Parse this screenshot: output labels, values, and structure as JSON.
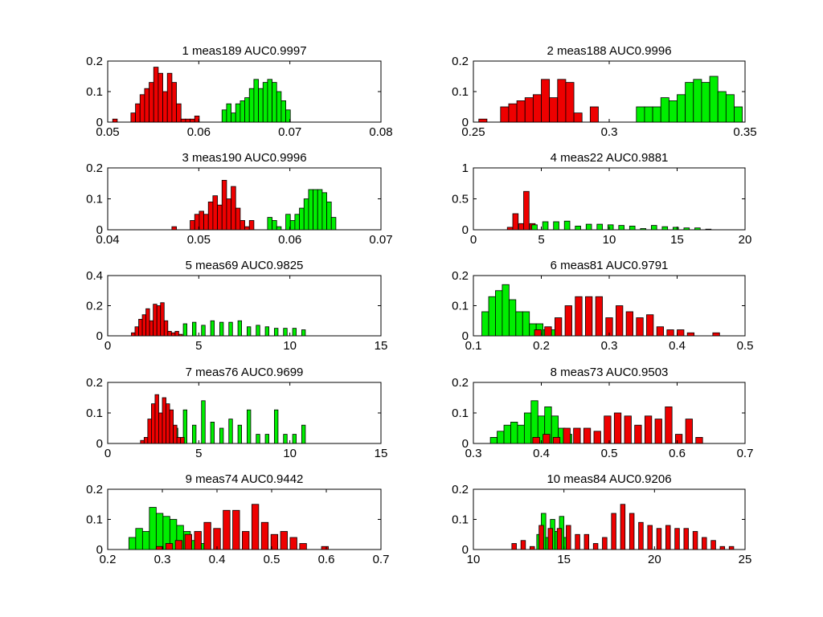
{
  "colors": {
    "red": "#ee0000",
    "green": "#00ee00",
    "edge": "#000000"
  },
  "chart_data": [
    {
      "type": "histogram",
      "title": "1 meas189 AUC0.9997",
      "xlim": [
        0.05,
        0.08
      ],
      "ylim": [
        0,
        0.2
      ],
      "xticks": [
        "0.05",
        "0.06",
        "0.07",
        "0.08"
      ],
      "yticks": [
        "0",
        "0.1",
        "0.2"
      ],
      "grid": false,
      "series": [
        {
          "color": "red",
          "x": [
            0.0508,
            0.0518,
            0.0528,
            0.0533,
            0.0538,
            0.0543,
            0.0548,
            0.0553,
            0.0558,
            0.0563,
            0.0568,
            0.0573,
            0.0578,
            0.0583,
            0.0588,
            0.0593,
            0.0598
          ],
          "y": [
            0.01,
            0.0,
            0.03,
            0.06,
            0.09,
            0.11,
            0.13,
            0.18,
            0.16,
            0.1,
            0.16,
            0.13,
            0.06,
            0.01,
            0.01,
            0.01,
            0.02
          ]
        },
        {
          "color": "green",
          "x": [
            0.0628,
            0.0633,
            0.0638,
            0.0643,
            0.0648,
            0.0653,
            0.0658,
            0.0663,
            0.0668,
            0.0673,
            0.0678,
            0.0683,
            0.0688,
            0.0693,
            0.0698
          ],
          "y": [
            0.04,
            0.06,
            0.03,
            0.06,
            0.07,
            0.08,
            0.11,
            0.14,
            0.11,
            0.13,
            0.14,
            0.13,
            0.1,
            0.07,
            0.04
          ]
        }
      ]
    },
    {
      "type": "histogram",
      "title": "2 meas188 AUC0.9996",
      "xlim": [
        0.25,
        0.35
      ],
      "ylim": [
        0,
        0.2
      ],
      "xticks": [
        "0.25",
        "0.3",
        "0.35"
      ],
      "yticks": [
        "0",
        "0.1",
        "0.2"
      ],
      "grid": false,
      "series": [
        {
          "color": "red",
          "x": [
            0.2535,
            0.2615,
            0.2645,
            0.2675,
            0.2705,
            0.2735,
            0.2765,
            0.2795,
            0.2825,
            0.2855,
            0.2885,
            0.2915,
            0.2945
          ],
          "y": [
            0.01,
            0.05,
            0.06,
            0.07,
            0.08,
            0.09,
            0.14,
            0.08,
            0.14,
            0.13,
            0.03,
            0.0,
            0.05
          ]
        },
        {
          "color": "green",
          "x": [
            0.3115,
            0.3145,
            0.3175,
            0.3205,
            0.3235,
            0.3265,
            0.3295,
            0.3325,
            0.3355,
            0.3385,
            0.3415,
            0.3445,
            0.3475
          ],
          "y": [
            0.05,
            0.05,
            0.05,
            0.08,
            0.07,
            0.09,
            0.13,
            0.14,
            0.13,
            0.15,
            0.1,
            0.09,
            0.05
          ]
        }
      ]
    },
    {
      "type": "histogram",
      "title": "3 meas190 AUC0.9996",
      "xlim": [
        0.04,
        0.07
      ],
      "ylim": [
        0,
        0.2
      ],
      "xticks": [
        "0.04",
        "0.05",
        "0.06",
        "0.07"
      ],
      "yticks": [
        "0",
        "0.1",
        "0.2"
      ],
      "grid": false,
      "series": [
        {
          "color": "red",
          "x": [
            0.0473,
            0.0493,
            0.0498,
            0.0503,
            0.0508,
            0.0513,
            0.0518,
            0.0523,
            0.0528,
            0.0533,
            0.0538,
            0.0543,
            0.0548,
            0.0553,
            0.0558
          ],
          "y": [
            0.01,
            0.03,
            0.05,
            0.06,
            0.05,
            0.09,
            0.11,
            0.08,
            0.16,
            0.1,
            0.14,
            0.07,
            0.03,
            0.01,
            0.03
          ]
        },
        {
          "color": "green",
          "x": [
            0.0578,
            0.0583,
            0.0588,
            0.0598,
            0.0603,
            0.0608,
            0.0613,
            0.0618,
            0.0623,
            0.0628,
            0.0633,
            0.0638,
            0.0643,
            0.0648
          ],
          "y": [
            0.04,
            0.03,
            0.01,
            0.05,
            0.03,
            0.05,
            0.07,
            0.1,
            0.13,
            0.13,
            0.13,
            0.12,
            0.09,
            0.04
          ]
        }
      ]
    },
    {
      "type": "histogram",
      "title": "4 meas22 AUC0.9881",
      "xlim": [
        0,
        20
      ],
      "ylim": [
        0,
        1
      ],
      "xticks": [
        "0",
        "5",
        "10",
        "15",
        "20"
      ],
      "yticks": [
        "0",
        "0.5",
        "1"
      ],
      "grid": false,
      "series": [
        {
          "color": "red",
          "x": [
            2.7,
            3.1,
            3.55,
            3.9,
            4.35
          ],
          "y": [
            0.04,
            0.26,
            0.1,
            0.62,
            0.1
          ]
        },
        {
          "color": "green",
          "x": [
            4.5,
            5.3,
            6.1,
            6.9,
            7.7,
            8.5,
            9.3,
            10.1,
            10.9,
            11.7,
            12.5,
            13.3,
            14.1,
            14.9,
            15.7,
            16.5,
            17.3
          ],
          "y": [
            0.08,
            0.13,
            0.13,
            0.14,
            0.06,
            0.09,
            0.09,
            0.08,
            0.07,
            0.06,
            0.02,
            0.07,
            0.05,
            0.04,
            0.03,
            0.03,
            0.01
          ]
        }
      ]
    },
    {
      "type": "histogram",
      "title": "5 meas69 AUC0.9825",
      "xlim": [
        0,
        15
      ],
      "ylim": [
        0,
        0.4
      ],
      "xticks": [
        "0",
        "5",
        "10",
        "15"
      ],
      "yticks": [
        "0",
        "0.2",
        "0.4"
      ],
      "grid": false,
      "series": [
        {
          "color": "green",
          "x": [
            2.75,
            3.25,
            3.75,
            4.25,
            4.75,
            5.25,
            5.75,
            6.25,
            6.75,
            7.25,
            7.75,
            8.25,
            8.75,
            9.25,
            9.75,
            10.25,
            10.75
          ],
          "y": [
            0.02,
            0.03,
            0.02,
            0.08,
            0.09,
            0.07,
            0.1,
            0.09,
            0.09,
            0.1,
            0.06,
            0.07,
            0.06,
            0.05,
            0.05,
            0.05,
            0.04
          ]
        },
        {
          "color": "red",
          "x": [
            1.4,
            1.6,
            1.8,
            2.0,
            2.2,
            2.4,
            2.6,
            2.8,
            3.0,
            3.2,
            3.4,
            3.6,
            3.8,
            4.0
          ],
          "y": [
            0.02,
            0.06,
            0.11,
            0.14,
            0.18,
            0.1,
            0.21,
            0.2,
            0.22,
            0.1,
            0.03,
            0.02,
            0.03,
            0.01
          ]
        }
      ]
    },
    {
      "type": "histogram",
      "title": "6 meas81 AUC0.9791",
      "xlim": [
        0.1,
        0.5
      ],
      "ylim": [
        0,
        0.2
      ],
      "xticks": [
        "0.1",
        "0.2",
        "0.3",
        "0.4",
        "0.5"
      ],
      "yticks": [
        "0",
        "0.1",
        "0.2"
      ],
      "grid": false,
      "series": [
        {
          "color": "green",
          "x": [
            0.1175,
            0.1275,
            0.1375,
            0.1475,
            0.1575,
            0.1675,
            0.1775,
            0.1875,
            0.1975,
            0.2075,
            0.2175
          ],
          "y": [
            0.08,
            0.13,
            0.15,
            0.17,
            0.12,
            0.08,
            0.08,
            0.04,
            0.04,
            0.02,
            0.02
          ]
        },
        {
          "color": "red",
          "x": [
            0.195,
            0.21,
            0.225,
            0.24,
            0.255,
            0.27,
            0.285,
            0.3,
            0.315,
            0.33,
            0.345,
            0.36,
            0.375,
            0.39,
            0.405,
            0.42,
            0.4575
          ],
          "y": [
            0.02,
            0.03,
            0.06,
            0.1,
            0.13,
            0.13,
            0.13,
            0.06,
            0.1,
            0.08,
            0.06,
            0.07,
            0.03,
            0.02,
            0.02,
            0.01,
            0.01
          ]
        }
      ]
    },
    {
      "type": "histogram",
      "title": "7 meas76 AUC0.9699",
      "xlim": [
        0,
        15
      ],
      "ylim": [
        0,
        0.2
      ],
      "xticks": [
        "0",
        "5",
        "10",
        "15"
      ],
      "yticks": [
        "0",
        "0.1",
        "0.2"
      ],
      "grid": false,
      "series": [
        {
          "color": "green",
          "x": [
            2.75,
            3.25,
            3.75,
            4.25,
            4.75,
            5.25,
            5.75,
            6.25,
            6.75,
            7.25,
            7.75,
            8.25,
            8.75,
            9.25,
            9.75,
            10.25,
            10.75
          ],
          "y": [
            0.01,
            0.02,
            0.05,
            0.11,
            0.06,
            0.14,
            0.07,
            0.05,
            0.08,
            0.06,
            0.11,
            0.03,
            0.03,
            0.11,
            0.03,
            0.03,
            0.06
          ]
        },
        {
          "color": "red",
          "x": [
            1.9,
            2.1,
            2.3,
            2.5,
            2.7,
            2.9,
            3.1,
            3.3,
            3.5,
            3.7,
            3.9,
            4.1
          ],
          "y": [
            0.01,
            0.02,
            0.08,
            0.13,
            0.16,
            0.1,
            0.15,
            0.13,
            0.11,
            0.06,
            0.02,
            0.02
          ]
        }
      ]
    },
    {
      "type": "histogram",
      "title": "8 meas73 AUC0.9503",
      "xlim": [
        0.3,
        0.7
      ],
      "ylim": [
        0,
        0.2
      ],
      "xticks": [
        "0.3",
        "0.4",
        "0.5",
        "0.6",
        "0.7"
      ],
      "yticks": [
        "0",
        "0.1",
        "0.2"
      ],
      "grid": false,
      "series": [
        {
          "color": "green",
          "x": [
            0.33,
            0.34,
            0.35,
            0.36,
            0.37,
            0.38,
            0.39,
            0.4,
            0.41,
            0.42,
            0.43,
            0.44
          ],
          "y": [
            0.02,
            0.04,
            0.06,
            0.07,
            0.06,
            0.1,
            0.14,
            0.09,
            0.12,
            0.09,
            0.05,
            0.03
          ]
        },
        {
          "color": "red",
          "x": [
            0.3925,
            0.4075,
            0.4225,
            0.4375,
            0.4525,
            0.4675,
            0.4825,
            0.4975,
            0.5125,
            0.5275,
            0.5425,
            0.5575,
            0.5725,
            0.5875,
            0.6025,
            0.6175,
            0.6325
          ],
          "y": [
            0.02,
            0.03,
            0.02,
            0.05,
            0.05,
            0.05,
            0.04,
            0.09,
            0.1,
            0.09,
            0.06,
            0.09,
            0.08,
            0.12,
            0.03,
            0.08,
            0.02
          ]
        }
      ]
    },
    {
      "type": "histogram",
      "title": "9 meas74 AUC0.9442",
      "xlim": [
        0.2,
        0.7
      ],
      "ylim": [
        0,
        0.2
      ],
      "xticks": [
        "0.2",
        "0.3",
        "0.4",
        "0.5",
        "0.6",
        "0.7"
      ],
      "yticks": [
        "0",
        "0.1",
        "0.2"
      ],
      "grid": false,
      "series": [
        {
          "color": "green",
          "x": [
            0.245,
            0.2575,
            0.27,
            0.2825,
            0.295,
            0.3075,
            0.32,
            0.3325,
            0.345,
            0.3575,
            0.37
          ],
          "y": [
            0.04,
            0.07,
            0.06,
            0.14,
            0.12,
            0.11,
            0.1,
            0.08,
            0.06,
            0.03,
            0.02
          ]
        },
        {
          "color": "red",
          "x": [
            0.295,
            0.3125,
            0.33,
            0.3475,
            0.365,
            0.3825,
            0.4,
            0.4175,
            0.435,
            0.4525,
            0.47,
            0.4875,
            0.505,
            0.5225,
            0.54,
            0.5575,
            0.575,
            0.5975
          ],
          "y": [
            0.01,
            0.02,
            0.03,
            0.05,
            0.06,
            0.09,
            0.07,
            0.13,
            0.13,
            0.06,
            0.15,
            0.09,
            0.05,
            0.06,
            0.04,
            0.02,
            0.0,
            0.01
          ]
        }
      ]
    },
    {
      "type": "histogram",
      "title": "10 meas84 AUC0.9206",
      "xlim": [
        10,
        25
      ],
      "ylim": [
        0,
        0.2
      ],
      "xticks": [
        "10",
        "15",
        "20",
        "25"
      ],
      "yticks": [
        "0",
        "0.1",
        "0.2"
      ],
      "grid": false,
      "series": [
        {
          "color": "green",
          "x": [
            13.625,
            13.875,
            14.125,
            14.375,
            14.625,
            14.875,
            15.125
          ],
          "y": [
            0.05,
            0.12,
            0.04,
            0.1,
            0.06,
            0.11,
            0.04
          ]
        },
        {
          "color": "red",
          "x": [
            12.25,
            12.75,
            13.25,
            13.75,
            14.25,
            14.75,
            15.25,
            15.75,
            16.25,
            16.75,
            17.25,
            17.75,
            18.25,
            18.75,
            19.25,
            19.75,
            20.25,
            20.75,
            21.25,
            21.75,
            22.25,
            22.75,
            23.25,
            23.75,
            24.25
          ],
          "y": [
            0.02,
            0.03,
            0.01,
            0.08,
            0.07,
            0.07,
            0.08,
            0.05,
            0.05,
            0.02,
            0.04,
            0.12,
            0.15,
            0.12,
            0.09,
            0.08,
            0.07,
            0.08,
            0.07,
            0.07,
            0.06,
            0.04,
            0.03,
            0.01,
            0.01
          ]
        }
      ]
    }
  ]
}
